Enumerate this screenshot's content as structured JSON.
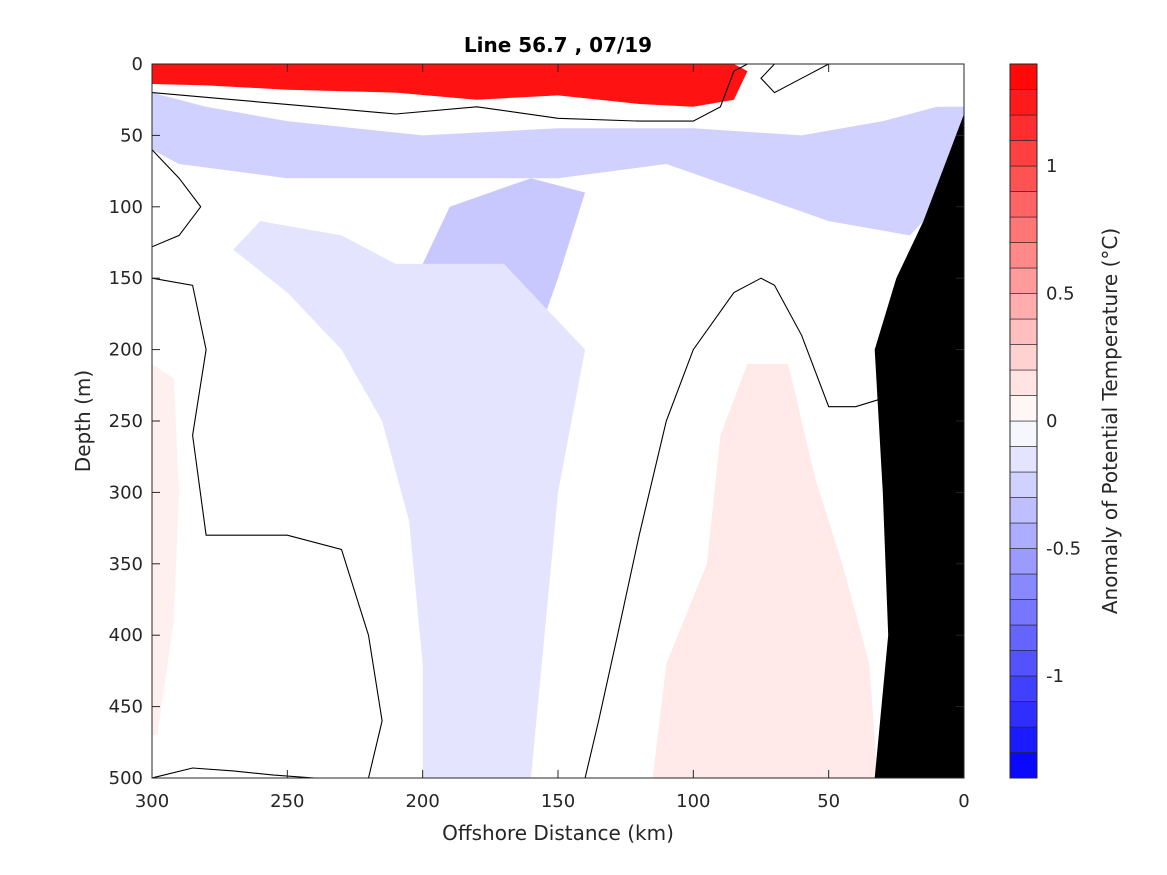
{
  "chart_data": {
    "type": "heatmap",
    "title": "Line 56.7 , 07/19",
    "xlabel": "Offshore Distance (km)",
    "ylabel": "Depth (m)",
    "xlim": [
      300,
      0
    ],
    "ylim": [
      500,
      0
    ],
    "x_reversed": true,
    "y_reversed": true,
    "x_ticks": [
      300,
      250,
      200,
      150,
      100,
      50,
      0
    ],
    "y_ticks": [
      0,
      50,
      100,
      150,
      200,
      250,
      300,
      350,
      400,
      450,
      500
    ],
    "colorbar": {
      "label": "Anomaly of Potential Temperature (°C)",
      "range": [
        -1.4,
        1.4
      ],
      "step": 0.1,
      "ticks": [
        -1,
        -0.5,
        0,
        0.5,
        1
      ],
      "tick_labels": [
        "-1",
        "-0.5",
        "0",
        "0.5",
        "1"
      ],
      "colormap": "blue-white-red",
      "neg_color": "#0000ff",
      "pos_color": "#ff0000",
      "mid_color": "#ffffff"
    },
    "bathymetry_color": "#000000",
    "zero_contour_color": "#000000",
    "fields": [
      {
        "description": "surface warm layer",
        "anomaly": 1.3,
        "points": [
          [
            300,
            0
          ],
          [
            250,
            0
          ],
          [
            200,
            0
          ],
          [
            150,
            0
          ],
          [
            100,
            0
          ],
          [
            85,
            0
          ],
          [
            80,
            5
          ],
          [
            85,
            25
          ],
          [
            100,
            30
          ],
          [
            120,
            28
          ],
          [
            150,
            22
          ],
          [
            180,
            25
          ],
          [
            210,
            20
          ],
          [
            250,
            18
          ],
          [
            280,
            15
          ],
          [
            300,
            14
          ]
        ]
      },
      {
        "description": "upper cool layer",
        "anomaly": -0.25,
        "points": [
          [
            300,
            20
          ],
          [
            280,
            30
          ],
          [
            250,
            40
          ],
          [
            200,
            50
          ],
          [
            150,
            45
          ],
          [
            100,
            45
          ],
          [
            60,
            50
          ],
          [
            30,
            40
          ],
          [
            10,
            30
          ],
          [
            0,
            30
          ],
          [
            0,
            80
          ],
          [
            20,
            120
          ],
          [
            50,
            110
          ],
          [
            80,
            90
          ],
          [
            110,
            70
          ],
          [
            150,
            80
          ],
          [
            200,
            80
          ],
          [
            250,
            80
          ],
          [
            290,
            70
          ],
          [
            300,
            60
          ]
        ]
      },
      {
        "description": "cool core mid-depth",
        "anomaly": -0.3,
        "points": [
          [
            190,
            100
          ],
          [
            160,
            80
          ],
          [
            140,
            90
          ],
          [
            150,
            150
          ],
          [
            165,
            230
          ],
          [
            185,
            230
          ],
          [
            190,
            180
          ],
          [
            200,
            140
          ]
        ]
      },
      {
        "description": "cool tongue deep",
        "anomaly": -0.15,
        "points": [
          [
            210,
            140
          ],
          [
            170,
            140
          ],
          [
            140,
            200
          ],
          [
            150,
            300
          ],
          [
            155,
            400
          ],
          [
            160,
            500
          ],
          [
            200,
            500
          ],
          [
            200,
            420
          ],
          [
            205,
            320
          ],
          [
            215,
            250
          ],
          [
            230,
            200
          ],
          [
            250,
            160
          ],
          [
            270,
            130
          ],
          [
            260,
            110
          ],
          [
            230,
            120
          ]
        ]
      },
      {
        "description": "deep warm anomaly",
        "anomaly": 0.12,
        "points": [
          [
            80,
            210
          ],
          [
            65,
            210
          ],
          [
            55,
            290
          ],
          [
            45,
            350
          ],
          [
            35,
            420
          ],
          [
            32,
            500
          ],
          [
            115,
            500
          ],
          [
            110,
            420
          ],
          [
            95,
            350
          ],
          [
            90,
            260
          ]
        ]
      },
      {
        "description": "west warm patch",
        "anomaly": 0.08,
        "points": [
          [
            300,
            210
          ],
          [
            292,
            220
          ],
          [
            290,
            300
          ],
          [
            292,
            390
          ],
          [
            298,
            470
          ],
          [
            300,
            470
          ]
        ]
      }
    ],
    "zero_contours": [
      [
        [
          300,
          20
        ],
        [
          270,
          25
        ],
        [
          240,
          30
        ],
        [
          210,
          35
        ],
        [
          180,
          30
        ],
        [
          150,
          38
        ],
        [
          120,
          40
        ],
        [
          100,
          40
        ],
        [
          90,
          30
        ],
        [
          85,
          5
        ],
        [
          80,
          0
        ]
      ],
      [
        [
          300,
          150
        ],
        [
          285,
          155
        ],
        [
          280,
          200
        ],
        [
          285,
          260
        ],
        [
          280,
          330
        ],
        [
          250,
          330
        ],
        [
          230,
          340
        ],
        [
          220,
          400
        ],
        [
          215,
          460
        ],
        [
          220,
          500
        ]
      ],
      [
        [
          140,
          500
        ],
        [
          135,
          460
        ],
        [
          128,
          400
        ],
        [
          120,
          330
        ],
        [
          110,
          250
        ],
        [
          100,
          200
        ],
        [
          85,
          160
        ],
        [
          75,
          150
        ],
        [
          70,
          155
        ],
        [
          60,
          190
        ],
        [
          50,
          240
        ],
        [
          40,
          240
        ],
        [
          28,
          233
        ]
      ],
      [
        [
          300,
          60
        ],
        [
          290,
          80
        ],
        [
          282,
          100
        ],
        [
          290,
          120
        ],
        [
          300,
          128
        ]
      ],
      [
        [
          50,
          0
        ],
        [
          60,
          10
        ],
        [
          70,
          20
        ],
        [
          75,
          10
        ],
        [
          70,
          0
        ]
      ],
      [
        [
          300,
          500
        ],
        [
          285,
          493
        ],
        [
          270,
          495
        ],
        [
          255,
          498
        ],
        [
          240,
          500
        ]
      ]
    ],
    "bathymetry_profile": [
      [
        0,
        35
      ],
      [
        5,
        60
      ],
      [
        15,
        110
      ],
      [
        25,
        150
      ],
      [
        33,
        200
      ],
      [
        30,
        300
      ],
      [
        28,
        400
      ],
      [
        33,
        500
      ]
    ]
  }
}
